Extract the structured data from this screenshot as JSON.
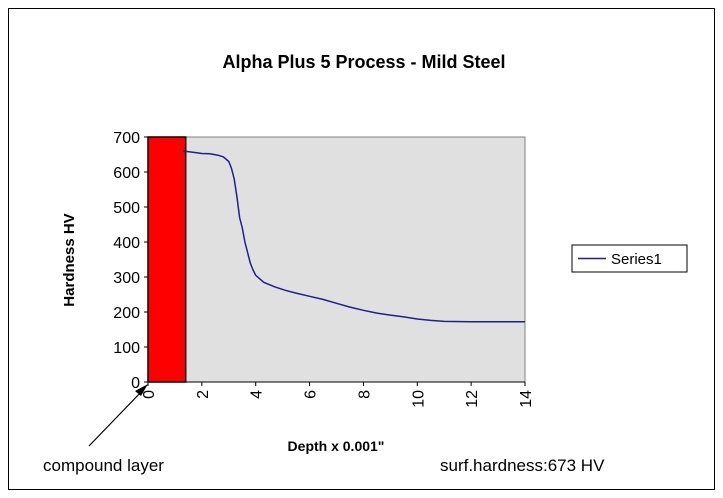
{
  "chart_data": {
    "type": "line",
    "title": "Alpha Plus 5 Process - Mild Steel",
    "xlabel": "Depth x 0.001\"",
    "ylabel": "Hardness HV",
    "xlim": [
      0,
      14
    ],
    "ylim": [
      0,
      700
    ],
    "x_ticks": [
      "0",
      "2",
      "4",
      "6",
      "8",
      "10",
      "12",
      "14"
    ],
    "y_ticks": [
      "0",
      "100",
      "200",
      "300",
      "400",
      "500",
      "600",
      "700"
    ],
    "grid": false,
    "legend_position": "right",
    "plot_background": "#e0e0e0",
    "series": [
      {
        "name": "Series1",
        "color": "#1f1f8f",
        "x": [
          1.3,
          1.7,
          2.0,
          2.3,
          2.6,
          2.8,
          3.0,
          3.1,
          3.2,
          3.3,
          3.4,
          3.5,
          3.6,
          3.7,
          3.8,
          3.9,
          4.0,
          4.3,
          4.7,
          5.1,
          5.5,
          6.0,
          6.5,
          7.0,
          7.5,
          8.0,
          8.5,
          9.0,
          9.5,
          10.0,
          10.5,
          11.0,
          12.0,
          13.0,
          14.0
        ],
        "y": [
          660,
          656,
          653,
          652,
          648,
          643,
          630,
          610,
          580,
          530,
          470,
          440,
          400,
          370,
          340,
          320,
          305,
          285,
          272,
          262,
          254,
          245,
          236,
          225,
          214,
          205,
          197,
          191,
          186,
          180,
          176,
          173,
          172,
          172,
          172
        ]
      }
    ],
    "highlight": {
      "label": "compound layer",
      "x_range": [
        0,
        1.4
      ],
      "color": "#ff0000"
    },
    "annotation": "surf.hardness:673 HV"
  }
}
